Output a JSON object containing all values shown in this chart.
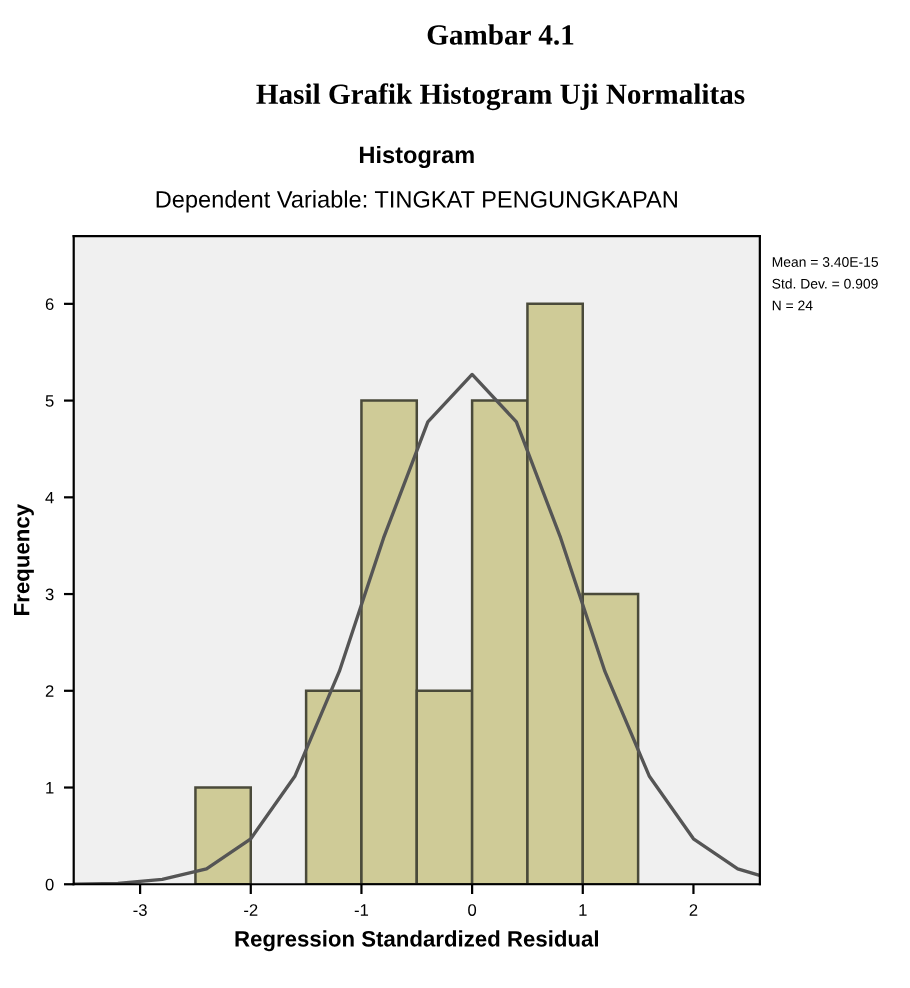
{
  "chart_data": {
    "type": "histogram",
    "title": "Histogram",
    "subtitle": "Dependent Variable: TINGKAT PENGUNGKAPAN",
    "xlabel": "Regression Standardized Residual",
    "ylabel": "Frequency",
    "annotations": [
      "Gambar 4.1",
      "Hasil Grafik Histogram Uji Normalitas",
      "Mean = 3.40E-15",
      "Std. Dev. = 0.909",
      "N = 24"
    ],
    "bins": [
      -2.5,
      -2.0,
      -1.5,
      -1.0,
      -0.5,
      0.0,
      0.5,
      1.0,
      1.5
    ],
    "values": [
      1,
      0,
      2,
      5,
      2,
      5,
      6,
      3
    ],
    "color": "#cfcb97",
    "series": [
      {
        "type": "line",
        "color": "#555555",
        "x": [
          -3.6,
          -3.2,
          -2.8,
          -2.4,
          -2.0,
          -1.6,
          -1.2,
          -0.8,
          -0.4,
          0.0,
          0.4,
          0.8,
          1.2,
          1.6,
          2.0,
          2.4,
          2.6
        ],
        "values": [
          0.0,
          0.01,
          0.05,
          0.16,
          0.47,
          1.12,
          2.2,
          3.58,
          4.78,
          5.27,
          4.78,
          3.58,
          2.2,
          1.12,
          0.47,
          0.16,
          0.09
        ]
      }
    ],
    "xlim": [
      -3.6,
      2.6
    ],
    "xticks": [
      -3,
      -2,
      -1,
      0,
      1,
      2
    ],
    "ylim": [
      0,
      6.7
    ],
    "yticks": [
      0,
      1,
      2,
      3,
      4,
      5,
      6
    ],
    "grid": false,
    "legend": false
  }
}
